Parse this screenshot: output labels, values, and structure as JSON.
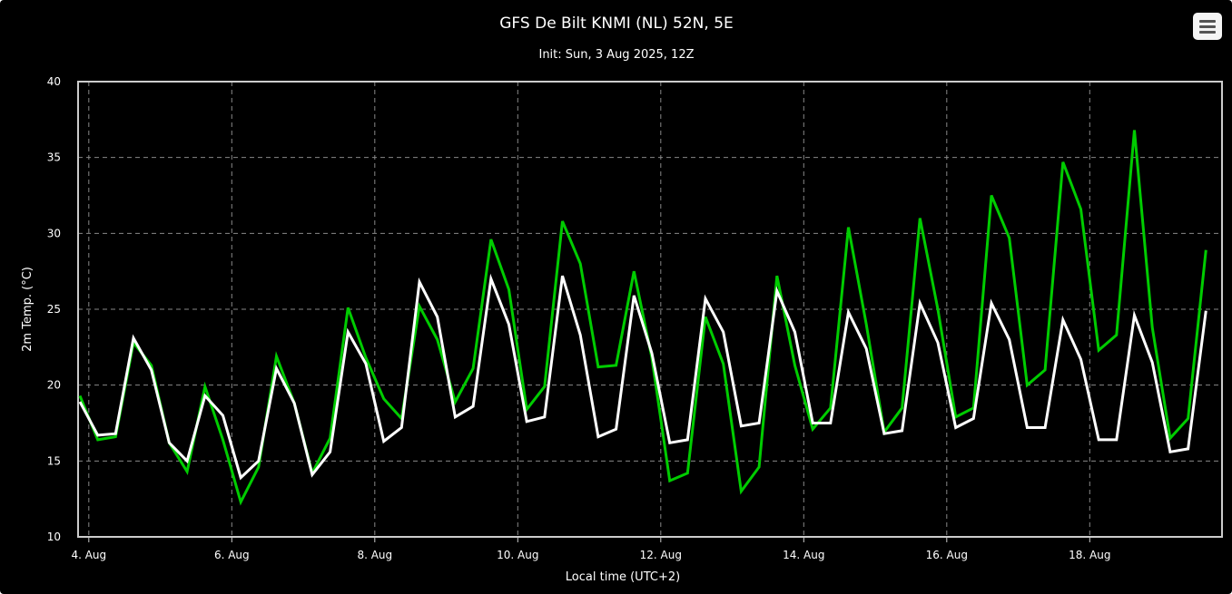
{
  "chart_data": {
    "type": "line",
    "title": "GFS De Bilt KNMI (NL) 52N, 5E",
    "subtitle": "Init: Sun, 3 Aug 2025, 12Z",
    "xlabel": "Local time (UTC+2)",
    "ylabel": "2m Temp. (°C)",
    "ylim": [
      10,
      40
    ],
    "yticks": [
      10,
      15,
      20,
      25,
      30,
      35,
      40
    ],
    "xlim": [
      -0.15,
      15.85
    ],
    "xticks": [
      {
        "pos": 0,
        "label": "4. Aug"
      },
      {
        "pos": 2,
        "label": "6. Aug"
      },
      {
        "pos": 4,
        "label": "8. Aug"
      },
      {
        "pos": 6,
        "label": "10. Aug"
      },
      {
        "pos": 8,
        "label": "12. Aug"
      },
      {
        "pos": 10,
        "label": "14. Aug"
      },
      {
        "pos": 12,
        "label": "16. Aug"
      },
      {
        "pos": 14,
        "label": "18. Aug"
      }
    ],
    "grid": true,
    "legend": "none",
    "colors": {
      "background": "#000000",
      "grid": "#888888",
      "plot_border": "#cccccc",
      "series_white": "#ffffff",
      "series_green": "#00cc00"
    },
    "series": [
      {
        "color": "#00cc00",
        "x": [
          -0.125,
          0.125,
          0.375,
          0.625,
          0.875,
          1.125,
          1.375,
          1.625,
          1.875,
          2.125,
          2.375,
          2.625,
          2.875,
          3.125,
          3.375,
          3.625,
          3.875,
          4.125,
          4.375,
          4.625,
          4.875,
          5.125,
          5.375,
          5.625,
          5.875,
          6.125,
          6.375,
          6.625,
          6.875,
          7.125,
          7.375,
          7.625,
          7.875,
          8.125,
          8.375,
          8.625,
          8.875,
          9.125,
          9.375,
          9.625,
          9.875,
          10.125,
          10.375,
          10.625,
          10.875,
          11.125,
          11.375,
          11.625,
          11.875,
          12.125,
          12.375,
          12.625,
          12.875,
          13.125,
          13.375,
          13.625,
          13.875,
          14.125,
          14.375,
          14.625,
          14.875,
          15.125,
          15.375,
          15.625
        ],
        "y": [
          19.3,
          16.4,
          16.6,
          22.8,
          21.3,
          16.2,
          14.3,
          19.9,
          16.4,
          12.3,
          14.6,
          21.9,
          18.8,
          14.2,
          16.5,
          25.1,
          21.8,
          19.1,
          17.8,
          25.2,
          23.0,
          18.9,
          21.1,
          29.6,
          26.3,
          18.4,
          19.9,
          30.8,
          28.0,
          21.2,
          21.3,
          27.5,
          21.8,
          13.7,
          14.2,
          24.5,
          21.4,
          13.0,
          14.6,
          27.2,
          21.3,
          17.1,
          18.5,
          30.4,
          24.0,
          16.9,
          18.5,
          31.0,
          25.0,
          17.9,
          18.5,
          32.5,
          29.7,
          20.0,
          21.0,
          34.7,
          31.6,
          22.3,
          23.3,
          36.8,
          23.8,
          16.5,
          17.8,
          28.9
        ]
      },
      {
        "color": "#ffffff",
        "x": [
          -0.125,
          0.125,
          0.375,
          0.625,
          0.875,
          1.125,
          1.375,
          1.625,
          1.875,
          2.125,
          2.375,
          2.625,
          2.875,
          3.125,
          3.375,
          3.625,
          3.875,
          4.125,
          4.375,
          4.625,
          4.875,
          5.125,
          5.375,
          5.625,
          5.875,
          6.125,
          6.375,
          6.625,
          6.875,
          7.125,
          7.375,
          7.625,
          7.875,
          8.125,
          8.375,
          8.625,
          8.875,
          9.125,
          9.375,
          9.625,
          9.875,
          10.125,
          10.375,
          10.625,
          10.875,
          11.125,
          11.375,
          11.625,
          11.875,
          12.125,
          12.375,
          12.625,
          12.875,
          13.125,
          13.375,
          13.625,
          13.875,
          14.125,
          14.375,
          14.625,
          14.875,
          15.125,
          15.375,
          15.625
        ],
        "y": [
          18.9,
          16.7,
          16.8,
          23.1,
          21.0,
          16.2,
          15.0,
          19.3,
          18.0,
          13.9,
          15.0,
          21.1,
          18.8,
          14.1,
          15.6,
          23.5,
          21.4,
          16.3,
          17.2,
          26.8,
          24.5,
          17.9,
          18.6,
          27.0,
          24.0,
          17.6,
          17.9,
          27.2,
          23.3,
          16.6,
          17.1,
          25.9,
          22.1,
          16.2,
          16.4,
          25.7,
          23.5,
          17.3,
          17.5,
          26.2,
          23.5,
          17.5,
          17.5,
          24.8,
          22.4,
          16.8,
          17.0,
          25.4,
          22.8,
          17.2,
          17.8,
          25.4,
          23.0,
          17.2,
          17.2,
          24.3,
          21.7,
          16.4,
          16.4,
          24.6,
          21.5,
          15.6,
          15.8,
          24.9
        ]
      }
    ]
  }
}
